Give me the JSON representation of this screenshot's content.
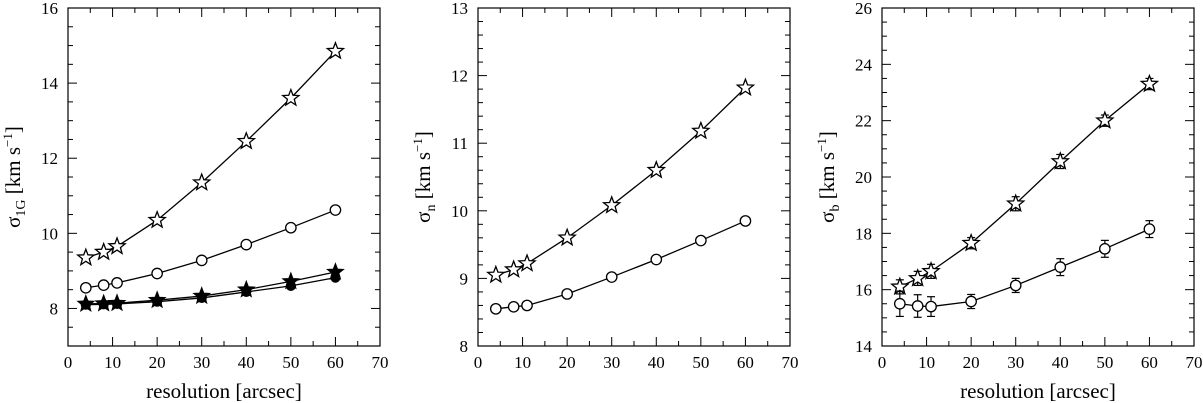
{
  "chart_data": [
    {
      "type": "line",
      "title": "",
      "xlabel": "resolution [arcsec]",
      "ylabel": "σ_1G [km s^-1]",
      "ylabel_parts": {
        "symbol": "σ",
        "subscript": "1G",
        "units": "[km s",
        "exponent": "−1",
        "close": "]"
      },
      "xlim": [
        0,
        70
      ],
      "ylim": [
        7,
        16
      ],
      "xticks": [
        0,
        10,
        20,
        30,
        40,
        50,
        60,
        70
      ],
      "yticks_labeled": [
        8,
        10,
        12,
        14,
        16
      ],
      "y_minor_step": 0.5,
      "x_minor_step": 5,
      "series": [
        {
          "marker": "open-star",
          "x": [
            4,
            8,
            11,
            20,
            30,
            40,
            50,
            60
          ],
          "y": [
            9.35,
            9.5,
            9.65,
            10.35,
            11.35,
            12.45,
            13.6,
            14.85
          ]
        },
        {
          "marker": "open-circle",
          "x": [
            4,
            8,
            11,
            20,
            30,
            40,
            50,
            60
          ],
          "y": [
            8.55,
            8.62,
            8.68,
            8.93,
            9.28,
            9.7,
            10.15,
            10.62
          ]
        },
        {
          "marker": "filled-star",
          "x": [
            4,
            8,
            11,
            20,
            30,
            40,
            50,
            60
          ],
          "y": [
            8.12,
            8.13,
            8.14,
            8.22,
            8.33,
            8.5,
            8.72,
            8.97
          ]
        },
        {
          "marker": "filled-circle",
          "x": [
            4,
            8,
            11,
            20,
            30,
            40,
            50,
            60
          ],
          "y": [
            8.1,
            8.11,
            8.12,
            8.18,
            8.28,
            8.44,
            8.6,
            8.82
          ]
        }
      ]
    },
    {
      "type": "line",
      "title": "",
      "xlabel": "",
      "ylabel": "σ_n [km s^-1]",
      "ylabel_parts": {
        "symbol": "σ",
        "subscript": "n",
        "units": "[km s",
        "exponent": "−1",
        "close": "]"
      },
      "xlim": [
        0,
        70
      ],
      "ylim": [
        8,
        13
      ],
      "xticks": [
        0,
        10,
        20,
        30,
        40,
        50,
        60,
        70
      ],
      "yticks_labeled": [
        8,
        9,
        10,
        11,
        12,
        13
      ],
      "y_minor_step": 0.2,
      "x_minor_step": 5,
      "series": [
        {
          "marker": "open-star",
          "x": [
            4,
            8,
            11,
            20,
            30,
            40,
            50,
            60
          ],
          "y": [
            9.05,
            9.13,
            9.22,
            9.6,
            10.08,
            10.6,
            11.18,
            11.82
          ]
        },
        {
          "marker": "open-circle",
          "x": [
            4,
            8,
            11,
            20,
            30,
            40,
            50,
            60
          ],
          "y": [
            8.55,
            8.58,
            8.6,
            8.77,
            9.02,
            9.28,
            9.56,
            9.85
          ]
        }
      ]
    },
    {
      "type": "line",
      "title": "",
      "xlabel": "resolution [arcsec]",
      "ylabel": "σ_b [km s^-1]",
      "ylabel_parts": {
        "symbol": "σ",
        "subscript": "b",
        "units": "[km s",
        "exponent": "−1",
        "close": "]"
      },
      "xlim": [
        0,
        70
      ],
      "ylim": [
        14,
        26
      ],
      "xticks": [
        0,
        10,
        20,
        30,
        40,
        50,
        60,
        70
      ],
      "yticks_labeled": [
        14,
        16,
        18,
        20,
        22,
        24,
        26
      ],
      "y_minor_step": 0.5,
      "x_minor_step": 5,
      "series": [
        {
          "marker": "open-star",
          "x": [
            4,
            8,
            11,
            20,
            30,
            40,
            50,
            60
          ],
          "y": [
            16.1,
            16.4,
            16.65,
            17.65,
            19.05,
            20.55,
            22.0,
            23.3
          ],
          "yerr": [
            0.25,
            0.25,
            0.25,
            0.2,
            0.25,
            0.25,
            0.2,
            0.2
          ]
        },
        {
          "marker": "open-circle",
          "x": [
            4,
            8,
            11,
            20,
            30,
            40,
            50,
            60
          ],
          "y": [
            15.5,
            15.42,
            15.4,
            15.58,
            16.15,
            16.8,
            17.45,
            18.15
          ],
          "yerr": [
            0.45,
            0.4,
            0.35,
            0.25,
            0.25,
            0.3,
            0.3,
            0.3
          ]
        }
      ]
    }
  ]
}
